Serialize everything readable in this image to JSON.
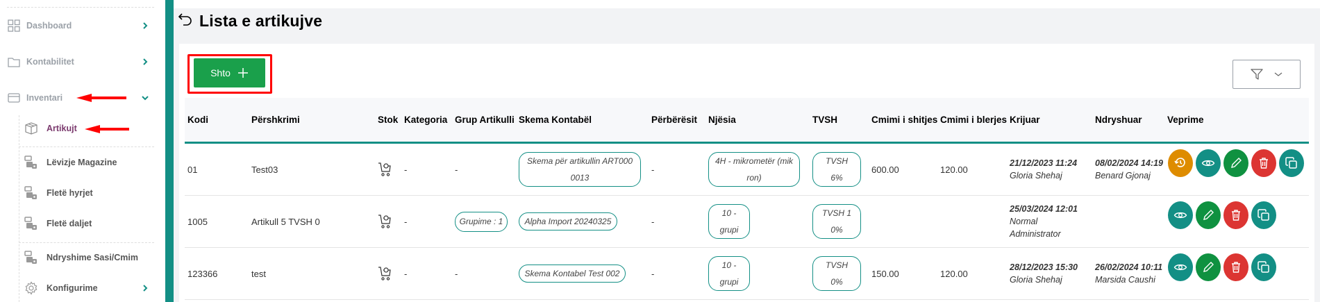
{
  "sidebar": {
    "items": [
      {
        "label": "Dashboard",
        "icon": "grid-icon"
      },
      {
        "label": "Kontabilitet",
        "icon": "folder-icon"
      },
      {
        "label": "Inventari",
        "icon": "card-icon",
        "expanded": true
      }
    ],
    "subitems": [
      {
        "label": "Artikujt",
        "icon": "box-icon",
        "active": true
      },
      {
        "label": "Lëvizje Magazine",
        "icon": "warehouse-icon"
      },
      {
        "label": "Fletë hyrjet",
        "icon": "warehouse-icon"
      },
      {
        "label": "Fletë daljet",
        "icon": "warehouse-icon"
      },
      {
        "label": "Ndryshime Sasi/Cmim",
        "icon": "warehouse-icon"
      },
      {
        "label": "Konfigurime",
        "icon": "gear-icon"
      }
    ]
  },
  "page": {
    "title": "Lista e artikujve",
    "add_label": "Shto"
  },
  "colors": {
    "teal": "#138f85",
    "green": "#1aa04b",
    "red": "#dc3532",
    "orange": "#de8c00",
    "active": "#7b3a6e"
  },
  "table": {
    "headers": [
      "Kodi",
      "Përshkrimi",
      "Stok",
      "Kategoria",
      "Grup Artikulli",
      "Skema Kontabël",
      "Përbërësit",
      "Njësia",
      "TVSH",
      "Cmimi i shitjes",
      "Cmimi i blerjes",
      "Krijuar",
      "Ndryshuar",
      "Veprime"
    ],
    "rows": [
      {
        "kodi": "01",
        "pershkrimi": "Test03",
        "kategoria": "-",
        "grup": "-",
        "skema": "Skema për artikullin ART000 0013",
        "perberesit": "-",
        "njesia": "4H - mikrometër (mik ron)",
        "tvsh": "TVSH 6%",
        "shitje": "600.00",
        "blerje": "120.00",
        "krijuar_date": "21/12/2023 11:24",
        "krijuar_user": "Gloria Shehaj",
        "ndryshuar_date": "08/02/2024 14:19",
        "ndryshuar_user": "Benard Gjonaj",
        "actions": [
          "history",
          "view",
          "edit",
          "delete",
          "copy"
        ]
      },
      {
        "kodi": "1005",
        "pershkrimi": "Artikull 5 TVSH 0",
        "kategoria": "-",
        "grup": "Grupime : 1",
        "skema": "Alpha Import 20240325",
        "perberesit": "-",
        "njesia": "10 - grupi",
        "tvsh": "TVSH 1 0%",
        "shitje": "",
        "blerje": "",
        "krijuar_date": "25/03/2024 12:01",
        "krijuar_user": "Normal Administrator",
        "ndryshuar_date": "",
        "ndryshuar_user": "",
        "actions": [
          "view",
          "edit",
          "delete",
          "copy"
        ]
      },
      {
        "kodi": "123366",
        "pershkrimi": "test",
        "kategoria": "-",
        "grup": "-",
        "skema": "Skema Kontabel Test 002",
        "perberesit": "-",
        "njesia": "10 - grupi",
        "tvsh": "TVSH 0%",
        "shitje": "150.00",
        "blerje": "120.00",
        "krijuar_date": "28/12/2023 15:30",
        "krijuar_user": "Gloria Shehaj",
        "ndryshuar_date": "26/02/2024 10:11",
        "ndryshuar_user": "Marsida Caushi",
        "actions": [
          "view",
          "edit",
          "delete",
          "copy"
        ]
      }
    ]
  }
}
